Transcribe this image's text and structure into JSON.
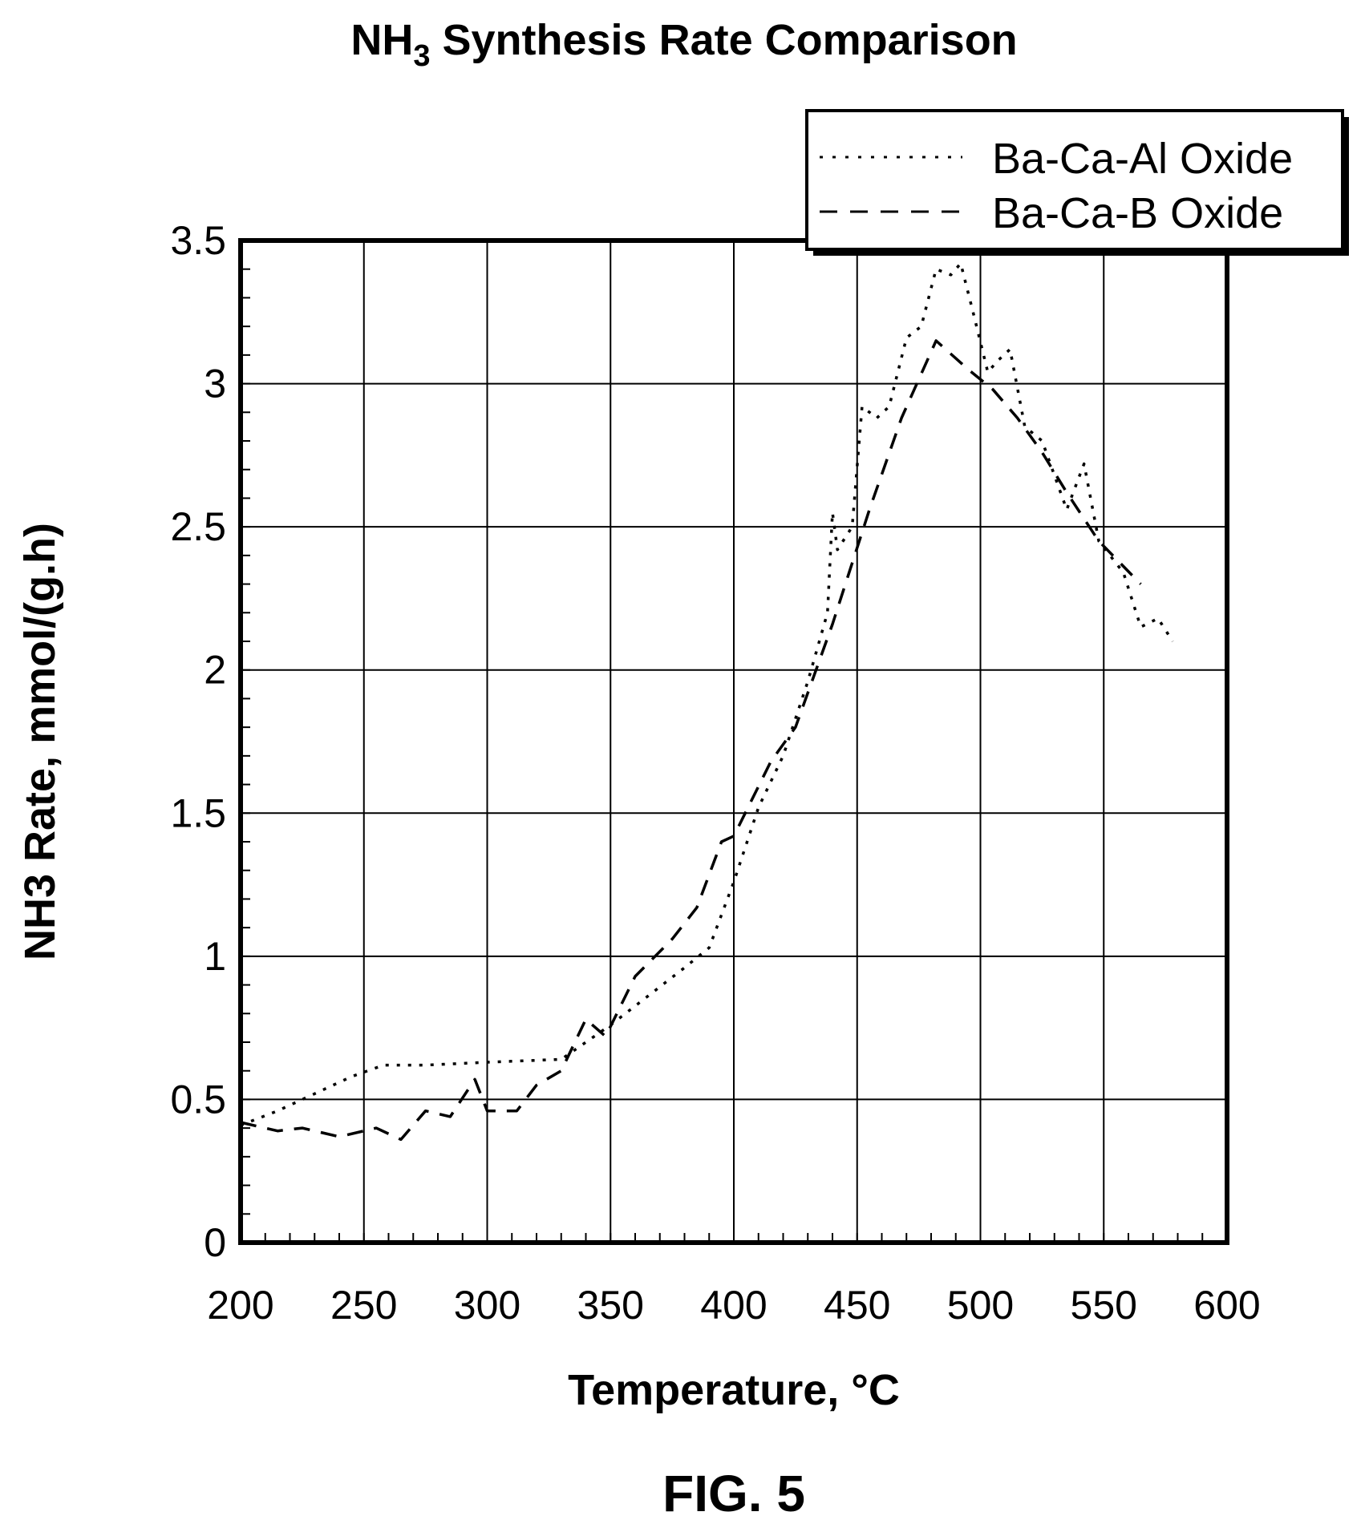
{
  "chart_data": {
    "type": "line",
    "title_main": "NH",
    "title_sub": "3",
    "title_rest": " Synthesis Rate Comparison",
    "xlabel": "Temperature, °C",
    "ylabel": "NH3 Rate, mmol/(g.h)",
    "figure_label": "FIG. 5",
    "xlim": [
      200,
      600
    ],
    "ylim": [
      0,
      3.5
    ],
    "xticks": [
      "200",
      "250",
      "300",
      "350",
      "400",
      "450",
      "500",
      "550",
      "600"
    ],
    "yticks": [
      "0",
      "0.5",
      "1",
      "1.5",
      "2",
      "2.5",
      "3",
      "3.5"
    ],
    "grid": true,
    "legend_position": "top-right",
    "line_color": "#000000",
    "series": [
      {
        "name": "Ba-Ca-Al Oxide",
        "style": "dotted",
        "points": [
          [
            200,
            0.41
          ],
          [
            215,
            0.46
          ],
          [
            230,
            0.52
          ],
          [
            245,
            0.58
          ],
          [
            258,
            0.62
          ],
          [
            275,
            0.62
          ],
          [
            300,
            0.63
          ],
          [
            330,
            0.64
          ],
          [
            350,
            0.76
          ],
          [
            365,
            0.86
          ],
          [
            380,
            0.96
          ],
          [
            390,
            1.03
          ],
          [
            400,
            1.26
          ],
          [
            410,
            1.52
          ],
          [
            420,
            1.7
          ],
          [
            430,
            1.96
          ],
          [
            438,
            2.2
          ],
          [
            440,
            2.55
          ],
          [
            442,
            2.42
          ],
          [
            445,
            2.46
          ],
          [
            448,
            2.5
          ],
          [
            452,
            2.92
          ],
          [
            458,
            2.88
          ],
          [
            463,
            2.92
          ],
          [
            470,
            3.16
          ],
          [
            476,
            3.2
          ],
          [
            482,
            3.4
          ],
          [
            488,
            3.38
          ],
          [
            492,
            3.42
          ],
          [
            497,
            3.25
          ],
          [
            503,
            3.04
          ],
          [
            507,
            3.08
          ],
          [
            512,
            3.12
          ],
          [
            518,
            2.85
          ],
          [
            525,
            2.8
          ],
          [
            535,
            2.56
          ],
          [
            542,
            2.72
          ],
          [
            548,
            2.45
          ],
          [
            558,
            2.34
          ],
          [
            565,
            2.15
          ],
          [
            572,
            2.18
          ],
          [
            578,
            2.1
          ]
        ]
      },
      {
        "name": "Ba-Ca-B Oxide",
        "style": "dashed",
        "points": [
          [
            200,
            0.42
          ],
          [
            215,
            0.39
          ],
          [
            225,
            0.4
          ],
          [
            240,
            0.37
          ],
          [
            255,
            0.4
          ],
          [
            265,
            0.36
          ],
          [
            275,
            0.46
          ],
          [
            285,
            0.44
          ],
          [
            295,
            0.57
          ],
          [
            300,
            0.46
          ],
          [
            312,
            0.46
          ],
          [
            320,
            0.55
          ],
          [
            330,
            0.6
          ],
          [
            340,
            0.78
          ],
          [
            348,
            0.72
          ],
          [
            360,
            0.93
          ],
          [
            375,
            1.06
          ],
          [
            385,
            1.17
          ],
          [
            395,
            1.4
          ],
          [
            400,
            1.42
          ],
          [
            415,
            1.68
          ],
          [
            425,
            1.8
          ],
          [
            440,
            2.16
          ],
          [
            455,
            2.56
          ],
          [
            468,
            2.88
          ],
          [
            482,
            3.15
          ],
          [
            495,
            3.05
          ],
          [
            505,
            2.98
          ],
          [
            515,
            2.88
          ],
          [
            525,
            2.76
          ],
          [
            535,
            2.62
          ],
          [
            548,
            2.45
          ],
          [
            565,
            2.3
          ]
        ]
      }
    ]
  }
}
